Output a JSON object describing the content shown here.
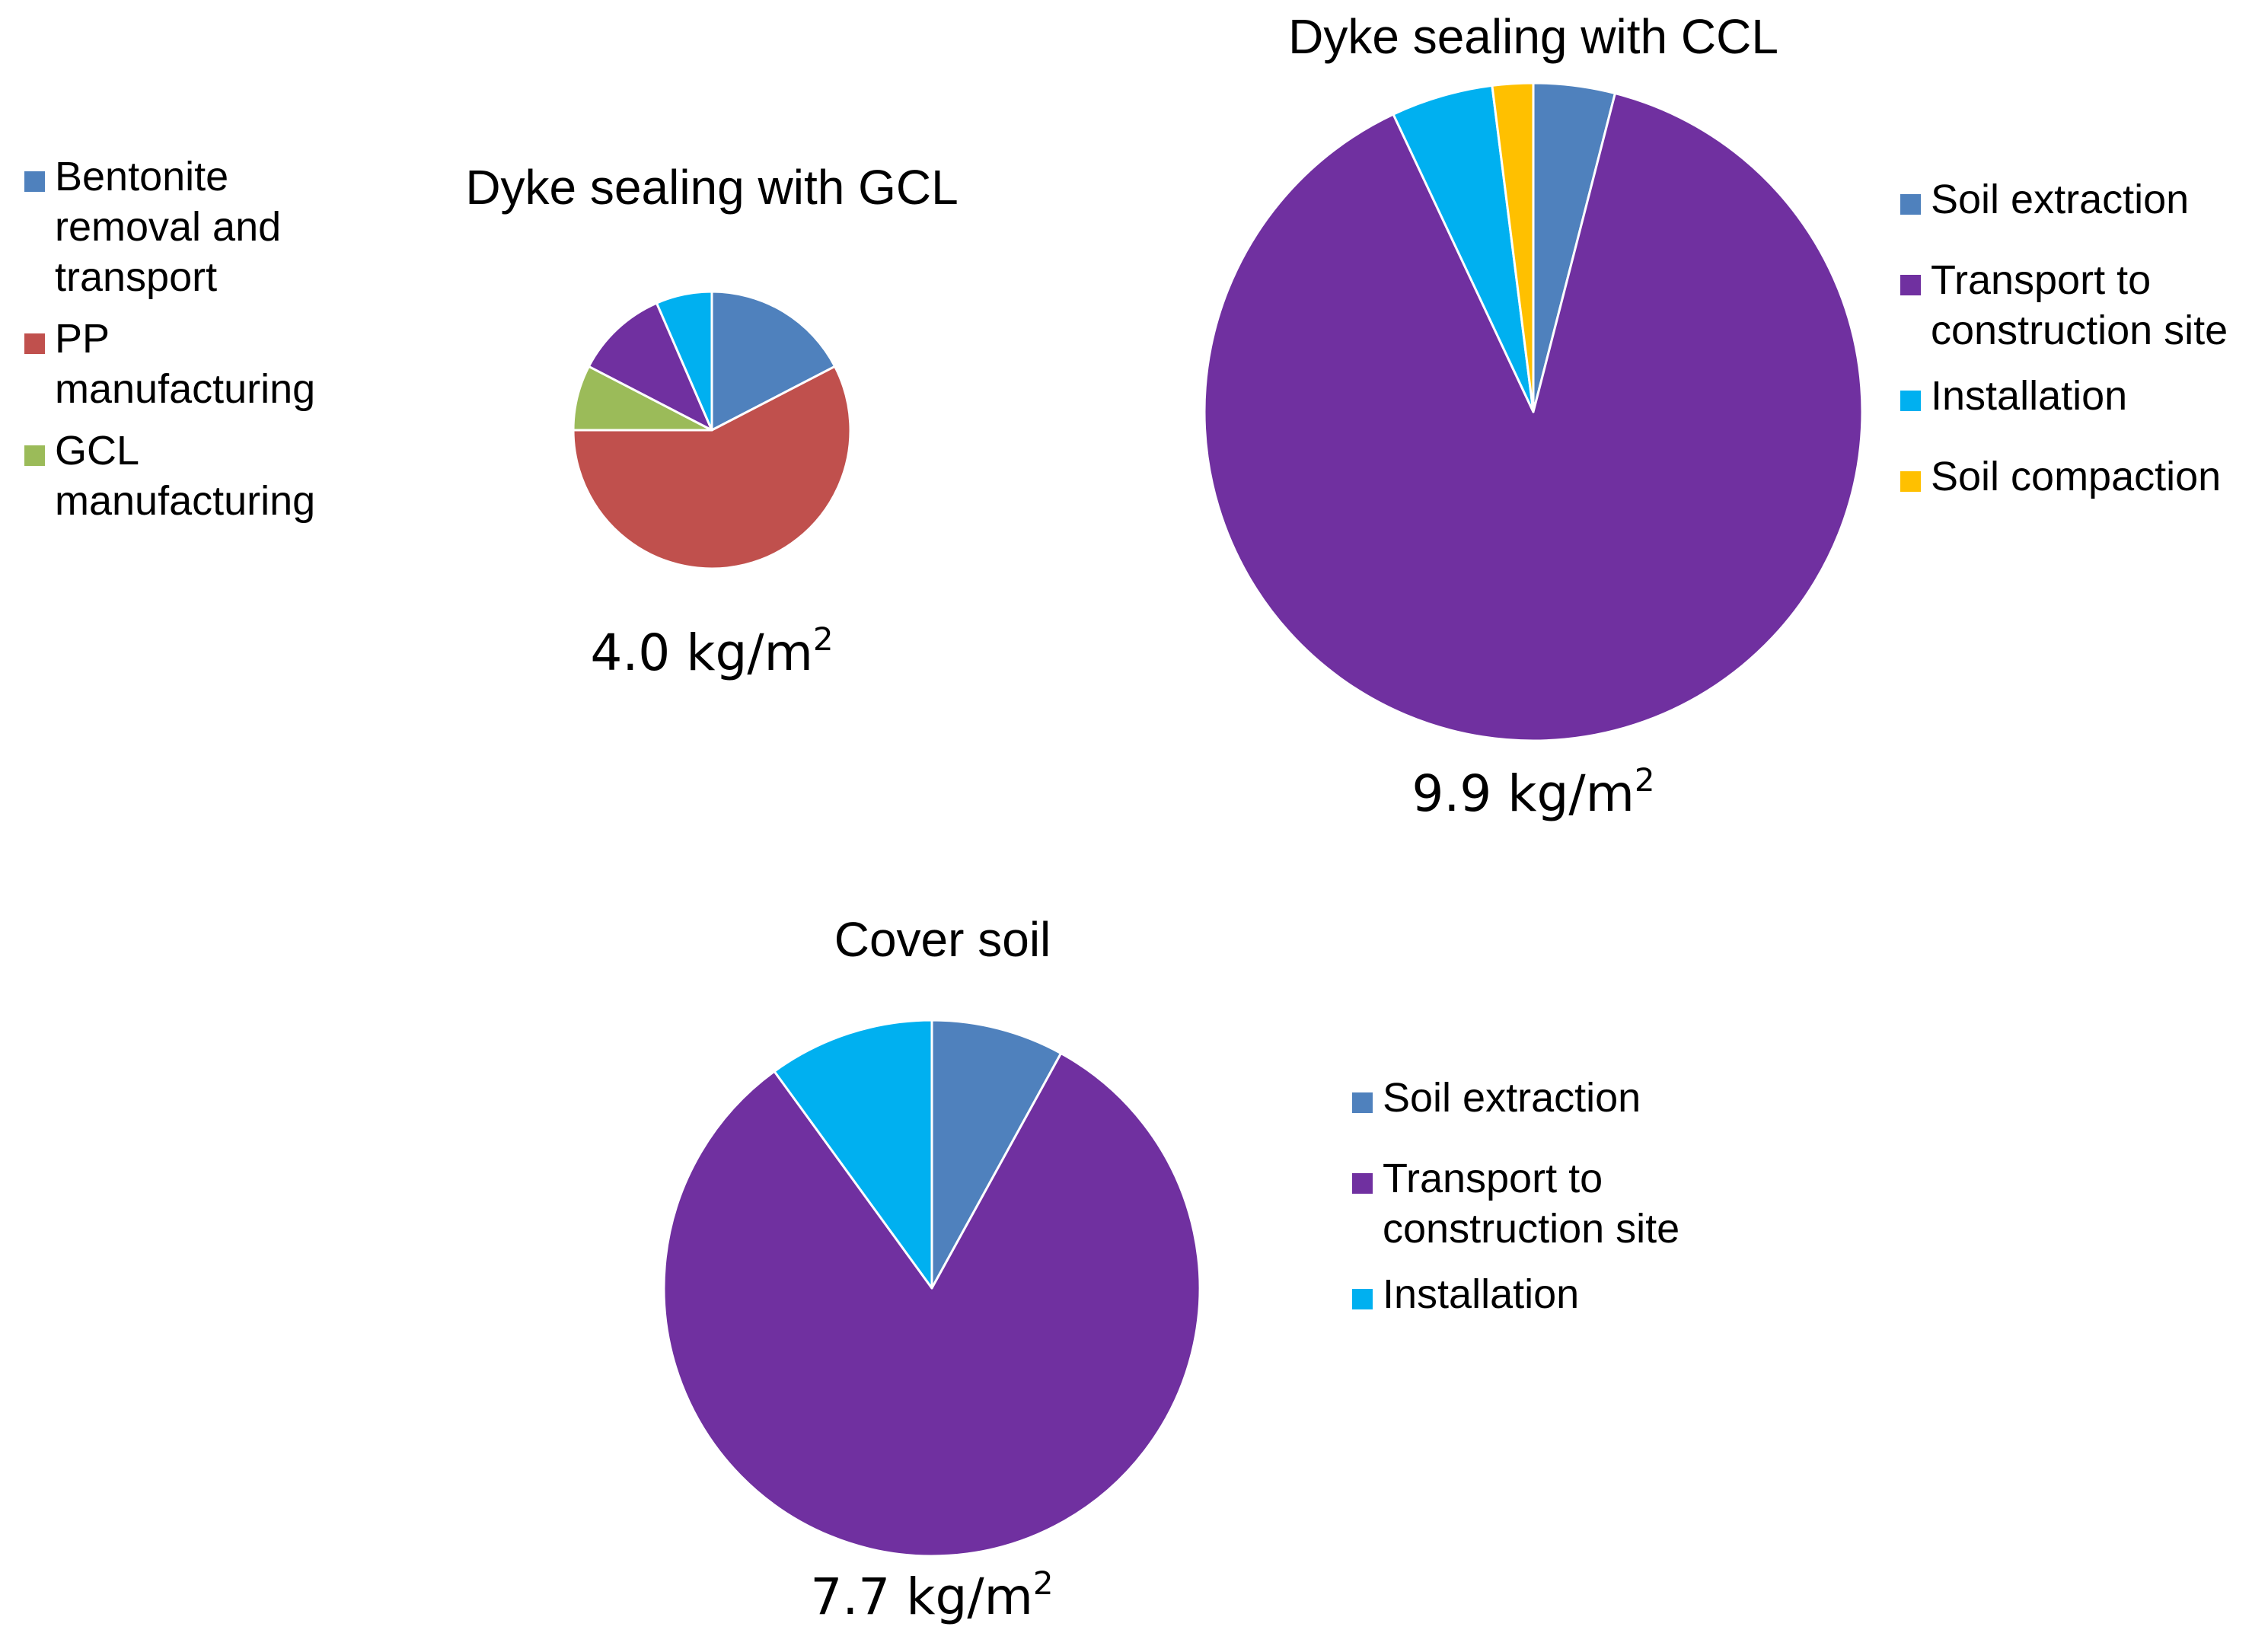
{
  "chart_data": [
    {
      "type": "pie",
      "id": "gcl",
      "title": "Dyke sealing with GCL",
      "total_label": "4.0 kg/m",
      "total_superscript": "2",
      "start_angle_deg": 0,
      "direction": "clockwise",
      "categories": [
        "Bentonite removal and transport",
        "PP manufacturing",
        "GCL manufacturing",
        "Transport to construction site",
        "Installation"
      ],
      "values": [
        16,
        53,
        7,
        10,
        6
      ],
      "colors": [
        "#4F81BD",
        "#C0504D",
        "#9BBB59",
        "#7030A0",
        "#00B0F0"
      ],
      "legend": [
        {
          "lines": [
            "Bentonite",
            "removal and",
            "transport"
          ],
          "color": "#4F81BD"
        },
        {
          "lines": [
            "PP",
            "manufacturing"
          ],
          "color": "#C0504D"
        },
        {
          "lines": [
            "GCL",
            "manufacturing"
          ],
          "color": "#9BBB59"
        }
      ]
    },
    {
      "type": "pie",
      "id": "ccl",
      "title": "Dyke sealing with CCL",
      "total_label": "9.9 kg/m",
      "total_superscript": "2",
      "start_angle_deg": 0,
      "direction": "clockwise",
      "categories": [
        "Soil extraction",
        "Transport to construction site",
        "Installation",
        "Soil compaction"
      ],
      "values": [
        4,
        89,
        5,
        2
      ],
      "colors": [
        "#4F81BD",
        "#7030A0",
        "#00B0F0",
        "#FFC000"
      ],
      "legend": [
        {
          "lines": [
            "Soil extraction"
          ],
          "color": "#4F81BD"
        },
        {
          "lines": [
            "Transport to",
            "construction site"
          ],
          "color": "#7030A0"
        },
        {
          "lines": [
            "Installation"
          ],
          "color": "#00B0F0"
        },
        {
          "lines": [
            "Soil compaction"
          ],
          "color": "#FFC000"
        }
      ]
    },
    {
      "type": "pie",
      "id": "cover",
      "title": "Cover soil",
      "total_label": "7.7 kg/m",
      "total_superscript": "2",
      "start_angle_deg": 0,
      "direction": "clockwise",
      "categories": [
        "Soil extraction",
        "Transport to construction site",
        "Installation"
      ],
      "values": [
        8,
        82,
        10
      ],
      "colors": [
        "#4F81BD",
        "#7030A0",
        "#00B0F0"
      ],
      "legend": [
        {
          "lines": [
            "Soil extraction"
          ],
          "color": "#4F81BD"
        },
        {
          "lines": [
            "Transport to",
            "construction site"
          ],
          "color": "#7030A0"
        },
        {
          "lines": [
            "Installation"
          ],
          "color": "#00B0F0"
        }
      ]
    }
  ]
}
